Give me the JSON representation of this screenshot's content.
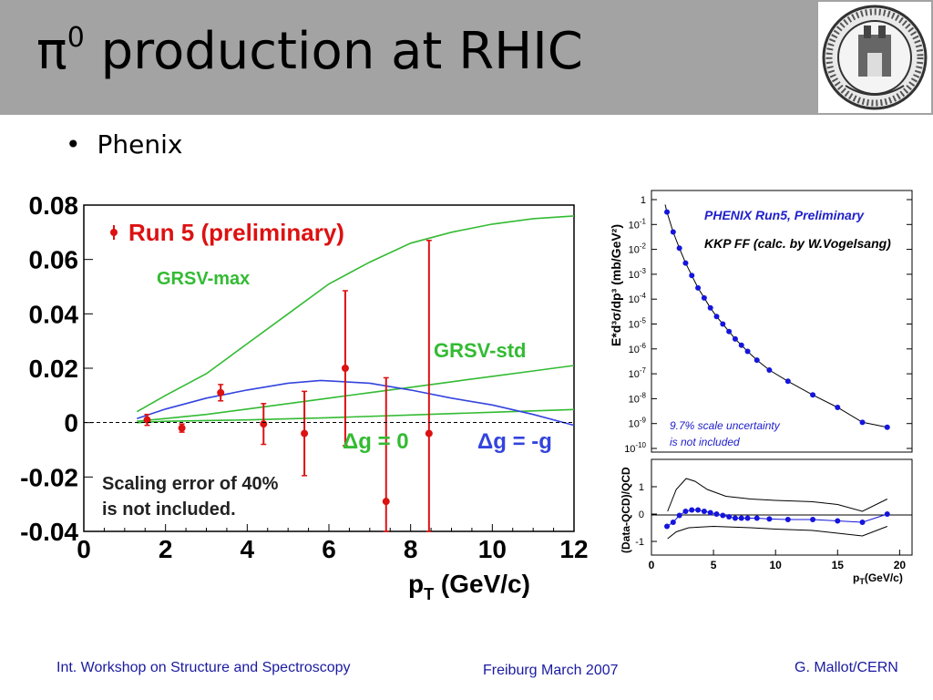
{
  "slide": {
    "title_main": "π",
    "title_sup": "0",
    "title_rest": " production at RHIC",
    "bullet": "Phenix"
  },
  "footer": {
    "left": "Int. Workshop on Structure and Spectroscopy",
    "center": "Freiburg March 2007",
    "right": "G. Mallot/CERN"
  },
  "colors": {
    "data": "#dd1111",
    "grsv": "#33bb33",
    "dg_minus_g": "#3344dd",
    "phenix_points": "#1515dd",
    "title_bar": "#a3a3a3"
  },
  "chart_data": [
    {
      "type": "scatter",
      "xlabel_main": "p",
      "xlabel_sub": "T",
      "xlabel_rest": " (GeV/c)",
      "ylabel": "",
      "xlim": [
        0,
        12
      ],
      "ylim": [
        -0.04,
        0.08
      ],
      "x_ticks": [
        "0",
        "2",
        "4",
        "6",
        "8",
        "10",
        "12"
      ],
      "y_ticks": [
        "0.08",
        "0.06",
        "0.04",
        "0.02",
        "0",
        "-0.02",
        "-0.04"
      ],
      "legend": {
        "marker_label": "Run 5 (preliminary)"
      },
      "labels": {
        "grsv_max": "GRSV-max",
        "grsv_std": "GRSV-std",
        "dg_zero": "Δg = 0",
        "dg_minus_g": "Δg = -g",
        "note_line1": "Scaling error of 40%",
        "note_line2": "is not included."
      },
      "points": [
        {
          "x": 1.55,
          "y": 0.001,
          "err": 0.002
        },
        {
          "x": 2.4,
          "y": -0.002,
          "err": 0.0015
        },
        {
          "x": 3.35,
          "y": 0.011,
          "err": 0.003
        },
        {
          "x": 4.4,
          "y": -0.0005,
          "err": 0.0075
        },
        {
          "x": 5.4,
          "y": -0.004,
          "err": 0.0155
        },
        {
          "x": 6.4,
          "y": 0.02,
          "err": 0.0285
        },
        {
          "x": 7.4,
          "y": -0.029,
          "err": 0.0455
        },
        {
          "x": 8.45,
          "y": -0.004,
          "err": 0.071
        }
      ],
      "series": [
        {
          "name": "GRSV-max",
          "x": [
            1.3,
            2,
            3,
            4,
            5,
            6,
            7,
            8,
            9,
            10,
            11,
            12
          ],
          "y": [
            0.004,
            0.01,
            0.018,
            0.029,
            0.04,
            0.051,
            0.059,
            0.066,
            0.07,
            0.073,
            0.075,
            0.076
          ]
        },
        {
          "name": "GRSV-std",
          "x": [
            1.3,
            2,
            3,
            4,
            5,
            6,
            7,
            8,
            9,
            10,
            11,
            12
          ],
          "y": [
            0.0005,
            0.0015,
            0.003,
            0.005,
            0.007,
            0.009,
            0.011,
            0.013,
            0.015,
            0.017,
            0.019,
            0.021
          ]
        },
        {
          "name": "Δg = 0",
          "x": [
            1.3,
            2,
            4,
            6,
            8,
            10,
            12
          ],
          "y": [
            0.0,
            0.0005,
            0.001,
            0.0018,
            0.0028,
            0.0038,
            0.0048
          ]
        },
        {
          "name": "Δg = -g",
          "x": [
            1.3,
            2,
            3,
            4,
            5,
            5.8,
            7,
            8,
            9,
            10,
            11,
            12
          ],
          "y": [
            0.0015,
            0.005,
            0.009,
            0.012,
            0.0145,
            0.0155,
            0.0145,
            0.012,
            0.009,
            0.0065,
            0.003,
            -0.001
          ]
        }
      ]
    },
    {
      "type": "scatter",
      "log_y": true,
      "ylabel": "E*d³σ/dp³ (mb/GeV²)",
      "xlim": [
        0,
        21
      ],
      "y_tick_exponents": [
        0,
        -1,
        -2,
        -3,
        -4,
        -5,
        -6,
        -7,
        -8,
        -9,
        -10
      ],
      "y_tick_labels": [
        "1",
        "10",
        "10",
        "10",
        "10",
        "10",
        "10",
        "10",
        "10",
        "10",
        "10"
      ],
      "y_tick_sups": [
        "",
        "-1",
        "-2",
        "-3",
        "-4",
        "-5",
        "-6",
        "-7",
        "-8",
        "-9",
        "-10"
      ],
      "labels": {
        "legend1": "PHENIX Run5, Preliminary",
        "legend2": "KKP FF (calc. by W.Vogelsang)",
        "note_line1": "9.7% scale uncertainty",
        "note_line2": "is not included"
      },
      "points": {
        "x": [
          1.25,
          1.75,
          2.25,
          2.75,
          3.25,
          3.75,
          4.25,
          4.75,
          5.25,
          5.75,
          6.25,
          6.75,
          7.25,
          7.75,
          8.5,
          9.5,
          11,
          13,
          15,
          17,
          19
        ],
        "log10_y": [
          -0.5,
          -1.3,
          -1.95,
          -2.55,
          -3.05,
          -3.55,
          -3.95,
          -4.35,
          -4.7,
          -5.0,
          -5.3,
          -5.6,
          -5.85,
          -6.1,
          -6.45,
          -6.85,
          -7.3,
          -7.85,
          -8.35,
          -8.95,
          -9.15
        ]
      }
    },
    {
      "type": "scatter",
      "ylabel": "(Data-QCD)/QCD",
      "xlabel_main": "p",
      "xlabel_sub": "T",
      "xlabel_rest": "(GeV/c)",
      "xlim": [
        0,
        21
      ],
      "ylim": [
        -1.5,
        2
      ],
      "x_ticks": [
        "0",
        "5",
        "10",
        "15",
        "20"
      ],
      "y_ticks": [
        "1",
        "0",
        "-1"
      ],
      "points": {
        "x": [
          1.25,
          1.75,
          2.25,
          2.75,
          3.25,
          3.75,
          4.25,
          4.75,
          5.25,
          5.75,
          6.25,
          6.75,
          7.25,
          7.75,
          8.5,
          9.5,
          11,
          13,
          15,
          17,
          19
        ],
        "y": [
          -0.45,
          -0.3,
          -0.05,
          0.1,
          0.15,
          0.15,
          0.1,
          0.05,
          0.0,
          -0.05,
          -0.1,
          -0.15,
          -0.15,
          -0.15,
          -0.15,
          -0.18,
          -0.2,
          -0.2,
          -0.25,
          -0.3,
          0.0
        ]
      },
      "band_upper": {
        "x": [
          1.3,
          2,
          2.8,
          3.5,
          4.5,
          6,
          8,
          10,
          13,
          15,
          17,
          19
        ],
        "y": [
          0.1,
          0.9,
          1.3,
          1.2,
          0.9,
          0.65,
          0.55,
          0.5,
          0.45,
          0.35,
          0.1,
          0.55
        ]
      },
      "band_lower": {
        "x": [
          1.3,
          2,
          3,
          5,
          8,
          10,
          13,
          15,
          17,
          19
        ],
        "y": [
          -0.9,
          -0.65,
          -0.5,
          -0.45,
          -0.5,
          -0.55,
          -0.6,
          -0.7,
          -0.8,
          -0.45
        ]
      }
    }
  ]
}
